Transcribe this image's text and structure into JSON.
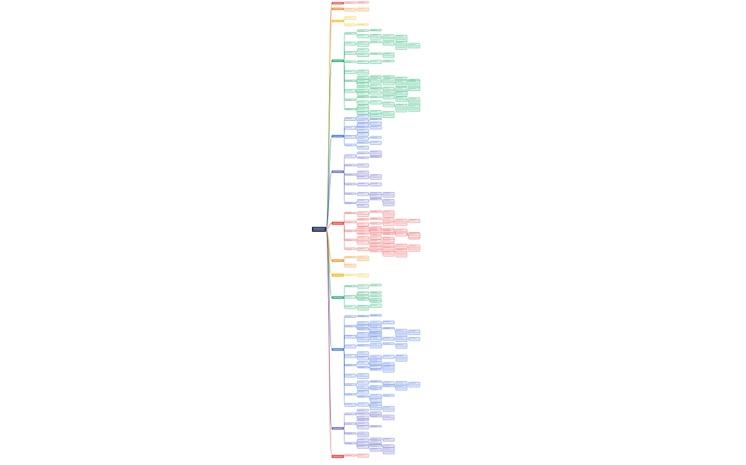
{
  "root": {
    "label": "",
    "fill": "#1f2a56",
    "text_color": "#ffffff"
  },
  "branch_colors": {
    "red": "#e84a4a",
    "orange": "#f08c1e",
    "yellow": "#f2c12e",
    "green": "#17a765",
    "blue": "#3a6bd6",
    "indigo": "#5b5fc7"
  },
  "branch_tints": {
    "red": "#fde3e3",
    "orange": "#fdebd6",
    "yellow": "#fdf5d4",
    "green": "#d8f3e6",
    "blue": "#dfe7fb",
    "indigo": "#e3e3f7"
  },
  "branches": [
    {
      "color": "red"
    },
    {
      "color": "orange"
    },
    {
      "color": "yellow"
    },
    {
      "color": "green"
    },
    {
      "color": "blue"
    },
    {
      "color": "indigo"
    },
    {
      "color": "red"
    },
    {
      "color": "orange"
    },
    {
      "color": "yellow"
    },
    {
      "color": "green"
    },
    {
      "color": "blue"
    },
    {
      "color": "indigo"
    },
    {
      "color": "red"
    }
  ],
  "note": ""
}
